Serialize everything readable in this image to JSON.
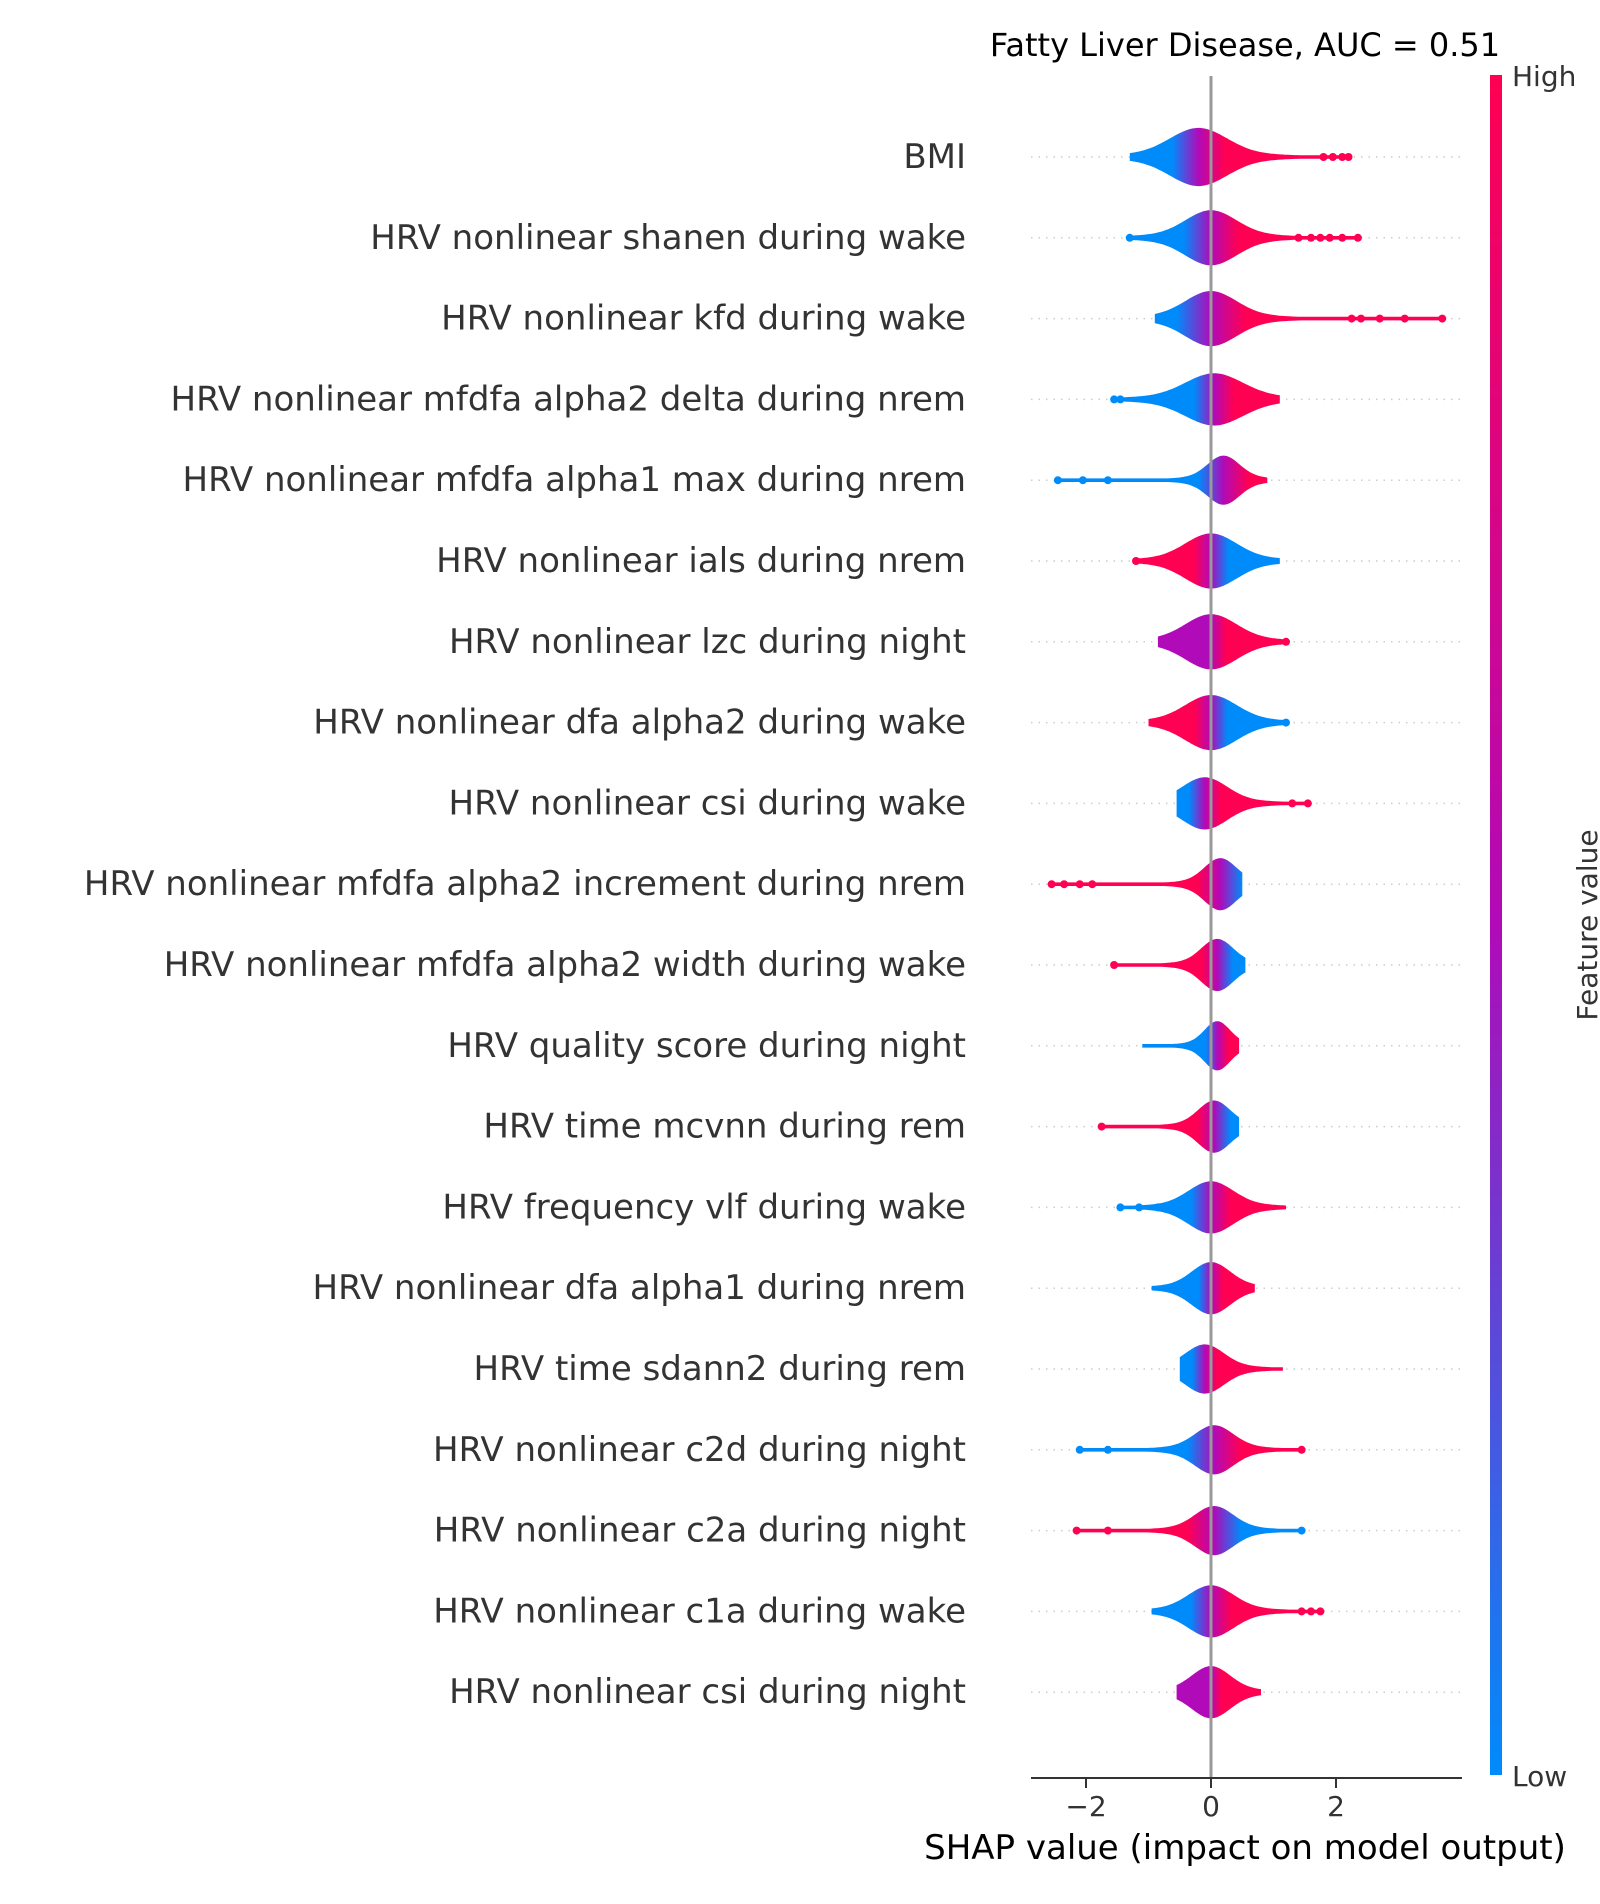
{
  "chart_data": {
    "type": "scatter",
    "subtype": "shap-summary-violin",
    "title": "Fatty Liver Disease, AUC =  0.51",
    "xlabel": "SHAP value (impact on model output)",
    "ylabel": "",
    "xlim": [
      -2.9,
      4.0
    ],
    "xticks": [
      -2,
      0,
      2
    ],
    "xtick_labels": [
      "−2",
      "0",
      "2"
    ],
    "grid": false,
    "colorbar": {
      "label": "Feature value",
      "high_label": "High",
      "low_label": "Low",
      "low_color": "#008bfb",
      "mid_color": "#b10ab8",
      "high_color": "#ff0052"
    },
    "colors": {
      "zero_line": "#999999",
      "text": "#333333",
      "dotted_row": "#cccccc"
    },
    "features": [
      {
        "label": "BMI",
        "min": -1.3,
        "max": 2.2,
        "center": -0.2,
        "peak_h": 0.85,
        "spread": 0.45,
        "left_color": "low",
        "right_color": "high",
        "outliers": [
          {
            "x": 1.8,
            "c": "high"
          },
          {
            "x": 1.95,
            "c": "high"
          },
          {
            "x": 2.1,
            "c": "high"
          },
          {
            "x": 2.2,
            "c": "high"
          }
        ]
      },
      {
        "label": "HRV nonlinear shanen during wake",
        "min": -1.3,
        "max": 2.35,
        "center": 0.0,
        "peak_h": 0.8,
        "spread": 0.4,
        "left_color": "low",
        "right_color": "high",
        "outliers": [
          {
            "x": -1.3,
            "c": "low"
          },
          {
            "x": 1.4,
            "c": "high"
          },
          {
            "x": 1.6,
            "c": "high"
          },
          {
            "x": 1.75,
            "c": "high"
          },
          {
            "x": 1.9,
            "c": "high"
          },
          {
            "x": 2.1,
            "c": "high"
          },
          {
            "x": 2.35,
            "c": "high"
          }
        ]
      },
      {
        "label": "HRV nonlinear kfd during wake",
        "min": -0.9,
        "max": 3.7,
        "center": 0.0,
        "peak_h": 0.8,
        "spread": 0.4,
        "left_color": "low",
        "right_color": "high",
        "outliers": [
          {
            "x": 2.25,
            "c": "high"
          },
          {
            "x": 2.4,
            "c": "high"
          },
          {
            "x": 2.7,
            "c": "high"
          },
          {
            "x": 3.1,
            "c": "high"
          },
          {
            "x": 3.7,
            "c": "high"
          }
        ]
      },
      {
        "label": "HRV nonlinear mfdfa alpha2 delta during nrem",
        "min": -1.55,
        "max": 1.1,
        "center": 0.05,
        "peak_h": 0.75,
        "spread": 0.45,
        "left_color": "low",
        "right_color": "high",
        "outliers": [
          {
            "x": -1.55,
            "c": "low"
          },
          {
            "x": -1.45,
            "c": "low"
          }
        ]
      },
      {
        "label": "HRV nonlinear mfdfa alpha1 max during nrem",
        "min": -2.45,
        "max": 0.9,
        "center": 0.2,
        "peak_h": 0.7,
        "spread": 0.25,
        "left_color": "low",
        "right_color": "high",
        "outliers": [
          {
            "x": -2.45,
            "c": "low"
          },
          {
            "x": -2.05,
            "c": "low"
          },
          {
            "x": -1.65,
            "c": "low"
          }
        ]
      },
      {
        "label": "HRV nonlinear ials during nrem",
        "min": -1.2,
        "max": 1.1,
        "center": 0.0,
        "peak_h": 0.8,
        "spread": 0.4,
        "left_color": "high",
        "right_color": "low",
        "outliers": [
          {
            "x": -1.2,
            "c": "high"
          }
        ]
      },
      {
        "label": "HRV nonlinear lzc during night",
        "min": -0.85,
        "max": 1.2,
        "center": 0.0,
        "peak_h": 0.8,
        "spread": 0.4,
        "left_color": "mid",
        "right_color": "high",
        "outliers": [
          {
            "x": 1.2,
            "c": "high"
          }
        ]
      },
      {
        "label": "HRV nonlinear dfa alpha2 during wake",
        "min": -1.0,
        "max": 1.2,
        "center": 0.0,
        "peak_h": 0.8,
        "spread": 0.4,
        "left_color": "high",
        "right_color": "low",
        "outliers": [
          {
            "x": 1.2,
            "c": "low"
          }
        ]
      },
      {
        "label": "HRV nonlinear csi during wake",
        "min": -0.55,
        "max": 1.55,
        "center": -0.1,
        "peak_h": 0.75,
        "spread": 0.35,
        "left_color": "low",
        "right_color": "high",
        "outliers": [
          {
            "x": 1.3,
            "c": "high"
          },
          {
            "x": 1.55,
            "c": "high"
          }
        ]
      },
      {
        "label": "HRV nonlinear mfdfa alpha2 increment during nrem",
        "min": -2.55,
        "max": 0.5,
        "center": 0.15,
        "peak_h": 0.75,
        "spread": 0.25,
        "left_color": "high",
        "right_color": "low",
        "outliers": [
          {
            "x": -2.55,
            "c": "high"
          },
          {
            "x": -2.35,
            "c": "high"
          },
          {
            "x": -2.1,
            "c": "high"
          },
          {
            "x": -1.9,
            "c": "high"
          }
        ]
      },
      {
        "label": "HRV nonlinear mfdfa alpha2 width during wake",
        "min": -1.55,
        "max": 0.55,
        "center": 0.1,
        "peak_h": 0.75,
        "spread": 0.25,
        "left_color": "high",
        "right_color": "low",
        "outliers": [
          {
            "x": -1.55,
            "c": "high"
          }
        ]
      },
      {
        "label": "HRV quality score during night",
        "min": -1.1,
        "max": 0.45,
        "center": 0.1,
        "peak_h": 0.7,
        "spread": 0.2,
        "left_color": "low",
        "right_color": "high",
        "outliers": []
      },
      {
        "label": "HRV time mcvnn during rem",
        "min": -1.75,
        "max": 0.45,
        "center": 0.05,
        "peak_h": 0.75,
        "spread": 0.25,
        "left_color": "high",
        "right_color": "low",
        "outliers": [
          {
            "x": -1.75,
            "c": "high"
          }
        ]
      },
      {
        "label": "HRV frequency vlf during wake",
        "min": -1.45,
        "max": 1.2,
        "center": 0.0,
        "peak_h": 0.75,
        "spread": 0.35,
        "left_color": "low",
        "right_color": "high",
        "outliers": [
          {
            "x": -1.45,
            "c": "low"
          },
          {
            "x": -1.15,
            "c": "low"
          },
          {
            "x": -0.85,
            "c": "low"
          }
        ]
      },
      {
        "label": "HRV nonlinear dfa alpha1 during nrem",
        "min": -0.95,
        "max": 0.7,
        "center": 0.0,
        "peak_h": 0.75,
        "spread": 0.3,
        "left_color": "low",
        "right_color": "high",
        "outliers": []
      },
      {
        "label": "HRV time sdann2 during rem",
        "min": -0.5,
        "max": 1.15,
        "center": -0.1,
        "peak_h": 0.7,
        "spread": 0.3,
        "left_color": "low",
        "right_color": "high",
        "outliers": []
      },
      {
        "label": "HRV nonlinear c2d during night",
        "min": -2.1,
        "max": 1.45,
        "center": 0.05,
        "peak_h": 0.7,
        "spread": 0.3,
        "left_color": "low",
        "right_color": "high",
        "outliers": [
          {
            "x": -2.1,
            "c": "low"
          },
          {
            "x": -1.65,
            "c": "low"
          },
          {
            "x": 1.45,
            "c": "high"
          }
        ]
      },
      {
        "label": "HRV nonlinear c2a during night",
        "min": -2.15,
        "max": 1.45,
        "center": 0.05,
        "peak_h": 0.7,
        "spread": 0.3,
        "left_color": "high",
        "right_color": "low",
        "outliers": [
          {
            "x": -2.15,
            "c": "high"
          },
          {
            "x": -1.65,
            "c": "high"
          },
          {
            "x": 1.45,
            "c": "low"
          }
        ]
      },
      {
        "label": "HRV nonlinear c1a during wake",
        "min": -0.95,
        "max": 1.75,
        "center": 0.0,
        "peak_h": 0.75,
        "spread": 0.35,
        "left_color": "low",
        "right_color": "high",
        "outliers": [
          {
            "x": 1.45,
            "c": "high"
          },
          {
            "x": 1.6,
            "c": "high"
          },
          {
            "x": 1.75,
            "c": "high"
          }
        ]
      },
      {
        "label": "HRV nonlinear csi during night",
        "min": -0.55,
        "max": 0.8,
        "center": 0.0,
        "peak_h": 0.75,
        "spread": 0.3,
        "left_color": "mid",
        "right_color": "high",
        "outliers": []
      }
    ]
  }
}
